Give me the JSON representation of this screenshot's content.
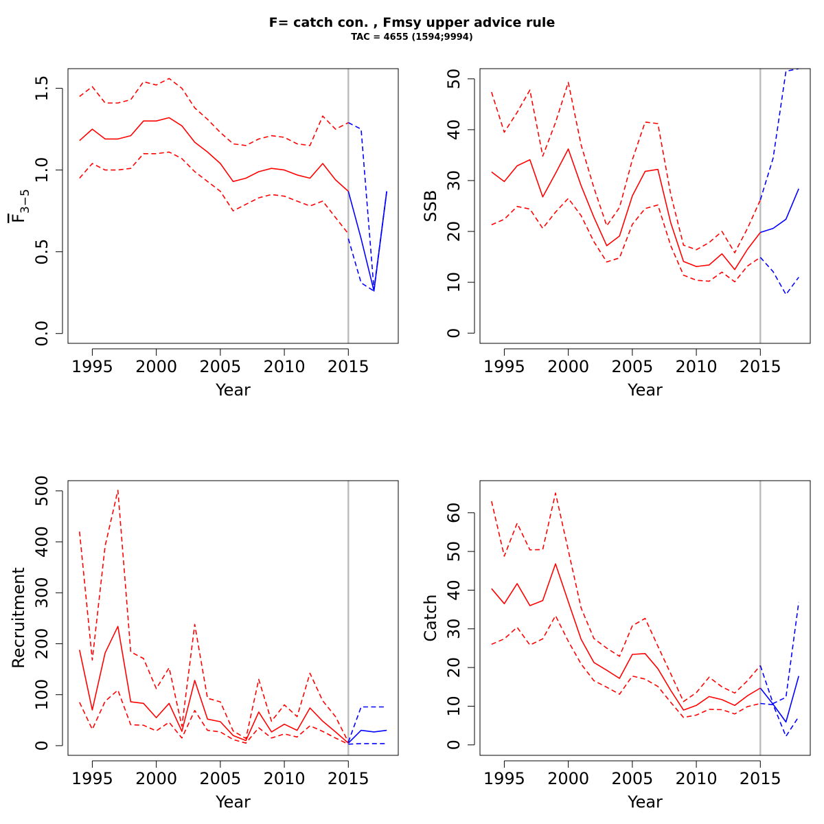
{
  "title": "F= catch con. , Fmsy upper advice rule",
  "subtitle": "TAC = 4655 (1594;9994)",
  "colors": {
    "historic": "#ff0000",
    "forecast": "#0000ff",
    "divider": "#bebebe",
    "axis": "#000000"
  },
  "chart_data": [
    {
      "type": "line",
      "xlabel": "Year",
      "ylabel": "F3-5",
      "ylabel_main": "F",
      "ylabel_sub": "3−5",
      "xlim": [
        1993.1,
        2018.9
      ],
      "ylim": [
        -0.06,
        1.62
      ],
      "xticks": [
        1995,
        2000,
        2005,
        2010,
        2015
      ],
      "yticks": [
        0,
        0.5,
        1,
        1.5
      ],
      "ytick_labels": [
        "0.0",
        "0.5",
        "1.0",
        "1.5"
      ],
      "divider_x": 2015,
      "series": [
        {
          "role": "historic-median",
          "style": "solid",
          "color": "#ff0000",
          "x": [
            1994,
            1995,
            1996,
            1997,
            1998,
            1999,
            2000,
            2001,
            2002,
            2003,
            2004,
            2005,
            2006,
            2007,
            2008,
            2009,
            2010,
            2011,
            2012,
            2013,
            2014,
            2015
          ],
          "values": [
            1.18,
            1.25,
            1.19,
            1.19,
            1.21,
            1.3,
            1.3,
            1.32,
            1.27,
            1.17,
            1.11,
            1.04,
            0.93,
            0.95,
            0.99,
            1.01,
            1.0,
            0.97,
            0.95,
            1.04,
            0.94,
            0.87
          ]
        },
        {
          "role": "historic-upper",
          "style": "dashed",
          "color": "#ff0000",
          "x": [
            1994,
            1995,
            1996,
            1997,
            1998,
            1999,
            2000,
            2001,
            2002,
            2003,
            2004,
            2005,
            2006,
            2007,
            2008,
            2009,
            2010,
            2011,
            2012,
            2013,
            2014,
            2015
          ],
          "values": [
            1.45,
            1.51,
            1.41,
            1.41,
            1.43,
            1.54,
            1.52,
            1.56,
            1.5,
            1.38,
            1.31,
            1.23,
            1.16,
            1.15,
            1.19,
            1.21,
            1.2,
            1.16,
            1.15,
            1.33,
            1.25,
            1.29
          ]
        },
        {
          "role": "historic-lower",
          "style": "dashed",
          "color": "#ff0000",
          "x": [
            1994,
            1995,
            1996,
            1997,
            1998,
            1999,
            2000,
            2001,
            2002,
            2003,
            2004,
            2005,
            2006,
            2007,
            2008,
            2009,
            2010,
            2011,
            2012,
            2013,
            2014,
            2015
          ],
          "values": [
            0.95,
            1.04,
            1.0,
            1.0,
            1.01,
            1.1,
            1.1,
            1.11,
            1.07,
            0.99,
            0.93,
            0.87,
            0.75,
            0.79,
            0.83,
            0.85,
            0.84,
            0.81,
            0.78,
            0.81,
            0.71,
            0.61
          ]
        },
        {
          "role": "forecast-median",
          "style": "solid",
          "color": "#0000ff",
          "x": [
            2015,
            2016,
            2017,
            2018
          ],
          "values": [
            0.87,
            0.58,
            0.26,
            0.87
          ]
        },
        {
          "role": "forecast-upper",
          "style": "dashed",
          "color": "#0000ff",
          "x": [
            2015,
            2016,
            2017,
            2018
          ],
          "values": [
            1.29,
            1.25,
            0.27,
            0.87
          ]
        },
        {
          "role": "forecast-lower",
          "style": "dashed",
          "color": "#0000ff",
          "x": [
            2015,
            2016,
            2017,
            2018
          ],
          "values": [
            0.58,
            0.31,
            0.26,
            0.87
          ]
        }
      ]
    },
    {
      "type": "line",
      "xlabel": "Year",
      "ylabel": "SSB",
      "xlim": [
        1993.1,
        2018.9
      ],
      "ylim": [
        -2.0,
        52.0
      ],
      "xticks": [
        1995,
        2000,
        2005,
        2010,
        2015
      ],
      "yticks": [
        0,
        10,
        20,
        30,
        40,
        50
      ],
      "ytick_labels": [
        "0",
        "10",
        "20",
        "30",
        "40",
        "50"
      ],
      "divider_x": 2015,
      "series": [
        {
          "role": "historic-median",
          "style": "solid",
          "color": "#ff0000",
          "x": [
            1994,
            1995,
            1996,
            1997,
            1998,
            1999,
            2000,
            2001,
            2002,
            2003,
            2004,
            2005,
            2006,
            2007,
            2008,
            2009,
            2010,
            2011,
            2012,
            2013,
            2014,
            2015
          ],
          "values": [
            31.7,
            29.8,
            32.9,
            34.1,
            26.8,
            31.4,
            36.2,
            29.0,
            22.8,
            17.2,
            19.1,
            27.0,
            31.8,
            32.2,
            21.7,
            14.1,
            13.1,
            13.4,
            15.6,
            12.5,
            16.5,
            19.8
          ]
        },
        {
          "role": "historic-upper",
          "style": "dashed",
          "color": "#ff0000",
          "x": [
            1994,
            1995,
            1996,
            1997,
            1998,
            1999,
            2000,
            2001,
            2002,
            2003,
            2004,
            2005,
            2006,
            2007,
            2008,
            2009,
            2010,
            2011,
            2012,
            2013,
            2014,
            2015
          ],
          "values": [
            47.4,
            39.5,
            43.4,
            47.8,
            34.8,
            41.4,
            49.3,
            37.0,
            28.6,
            21.1,
            24.7,
            34.1,
            41.5,
            41.2,
            27.3,
            17.3,
            16.4,
            17.8,
            20.0,
            15.8,
            20.6,
            26.2
          ]
        },
        {
          "role": "historic-lower",
          "style": "dashed",
          "color": "#ff0000",
          "x": [
            1994,
            1995,
            1996,
            1997,
            1998,
            1999,
            2000,
            2001,
            2002,
            2003,
            2004,
            2005,
            2006,
            2007,
            2008,
            2009,
            2010,
            2011,
            2012,
            2013,
            2014,
            2015
          ],
          "values": [
            21.3,
            22.4,
            24.9,
            24.4,
            20.6,
            23.8,
            26.5,
            23.1,
            18.0,
            14.0,
            14.8,
            21.4,
            24.5,
            25.2,
            17.2,
            11.4,
            10.4,
            10.2,
            12.0,
            10.1,
            13.2,
            14.9
          ]
        },
        {
          "role": "forecast-median",
          "style": "solid",
          "color": "#0000ff",
          "x": [
            2015,
            2016,
            2017,
            2018
          ],
          "values": [
            19.8,
            20.6,
            22.4,
            28.4
          ]
        },
        {
          "role": "forecast-upper",
          "style": "dashed",
          "color": "#0000ff",
          "x": [
            2015,
            2016,
            2017,
            2018
          ],
          "values": [
            26.2,
            34.4,
            51.5,
            52.0
          ]
        },
        {
          "role": "forecast-lower",
          "style": "dashed",
          "color": "#0000ff",
          "x": [
            2015,
            2016,
            2017,
            2018
          ],
          "values": [
            14.9,
            12.1,
            7.6,
            11.0
          ]
        }
      ]
    },
    {
      "type": "line",
      "xlabel": "Year",
      "ylabel": "Recruitment",
      "xlim": [
        1993.1,
        2018.9
      ],
      "ylim": [
        -19.0,
        520.0
      ],
      "xticks": [
        1995,
        2000,
        2005,
        2010,
        2015
      ],
      "yticks": [
        0,
        100,
        200,
        300,
        400,
        500
      ],
      "ytick_labels": [
        "0",
        "100",
        "200",
        "300",
        "400",
        "500"
      ],
      "divider_x": 2015,
      "series": [
        {
          "role": "historic-median",
          "style": "solid",
          "color": "#ff0000",
          "x": [
            1994,
            1995,
            1996,
            1997,
            1998,
            1999,
            2000,
            2001,
            2002,
            2003,
            2004,
            2005,
            2006,
            2007,
            2008,
            2009,
            2010,
            2011,
            2012,
            2013,
            2014,
            2015
          ],
          "values": [
            188,
            70,
            182,
            234,
            86,
            83,
            55,
            83,
            28,
            128,
            52,
            47,
            20,
            10,
            66,
            27,
            42,
            30,
            74,
            48,
            27,
            5
          ]
        },
        {
          "role": "historic-upper",
          "style": "dashed",
          "color": "#ff0000",
          "x": [
            1994,
            1995,
            1996,
            1997,
            1998,
            1999,
            2000,
            2001,
            2002,
            2003,
            2004,
            2005,
            2006,
            2007,
            2008,
            2009,
            2010,
            2011,
            2012,
            2013,
            2014,
            2015
          ],
          "values": [
            420,
            168,
            392,
            501,
            184,
            171,
            112,
            153,
            38,
            238,
            93,
            86,
            29,
            14,
            130,
            48,
            80,
            57,
            142,
            88,
            57,
            7
          ]
        },
        {
          "role": "historic-lower",
          "style": "dashed",
          "color": "#ff0000",
          "x": [
            1994,
            1995,
            1996,
            1997,
            1998,
            1999,
            2000,
            2001,
            2002,
            2003,
            2004,
            2005,
            2006,
            2007,
            2008,
            2009,
            2010,
            2011,
            2012,
            2013,
            2014,
            2015
          ],
          "values": [
            85,
            32,
            87,
            109,
            41,
            40,
            29,
            46,
            15,
            69,
            30,
            27,
            12,
            5,
            35,
            15,
            23,
            17,
            39,
            28,
            15,
            3
          ]
        },
        {
          "role": "forecast-median",
          "style": "solid",
          "color": "#0000ff",
          "x": [
            2015,
            2016,
            2017,
            2018
          ],
          "values": [
            5,
            30,
            27,
            30
          ]
        },
        {
          "role": "forecast-upper",
          "style": "dashed",
          "color": "#0000ff",
          "x": [
            2015,
            2016,
            2017,
            2018
          ],
          "values": [
            7,
            76,
            76,
            76
          ]
        },
        {
          "role": "forecast-lower",
          "style": "dashed",
          "color": "#0000ff",
          "x": [
            2015,
            2016,
            2017,
            2018
          ],
          "values": [
            3,
            4,
            4,
            4
          ]
        }
      ]
    },
    {
      "type": "line",
      "xlabel": "Year",
      "ylabel": "Catch",
      "xlim": [
        1993.1,
        2018.9
      ],
      "ylim": [
        -2.7,
        68.3
      ],
      "xticks": [
        1995,
        2000,
        2005,
        2010,
        2015
      ],
      "yticks": [
        0,
        10,
        20,
        30,
        40,
        50,
        60
      ],
      "ytick_labels": [
        "0",
        "10",
        "20",
        "30",
        "40",
        "50",
        "60"
      ],
      "divider_x": 2015,
      "series": [
        {
          "role": "historic-median",
          "style": "solid",
          "color": "#ff0000",
          "x": [
            1994,
            1995,
            1996,
            1997,
            1998,
            1999,
            2000,
            2001,
            2002,
            2003,
            2004,
            2005,
            2006,
            2007,
            2008,
            2009,
            2010,
            2011,
            2012,
            2013,
            2014,
            2015
          ],
          "values": [
            40.4,
            36.5,
            41.7,
            36.0,
            37.3,
            46.8,
            37.0,
            27.3,
            21.3,
            19.3,
            17.2,
            23.4,
            23.6,
            19.7,
            14.1,
            9.0,
            10.2,
            12.5,
            11.7,
            10.2,
            12.7,
            14.7
          ]
        },
        {
          "role": "historic-upper",
          "style": "dashed",
          "color": "#ff0000",
          "x": [
            1994,
            1995,
            1996,
            1997,
            1998,
            1999,
            2000,
            2001,
            2002,
            2003,
            2004,
            2005,
            2006,
            2007,
            2008,
            2009,
            2010,
            2011,
            2012,
            2013,
            2014,
            2015
          ],
          "values": [
            63.0,
            48.8,
            57.3,
            50.4,
            50.5,
            65.1,
            50.3,
            35.4,
            27.5,
            25.0,
            22.9,
            30.8,
            32.7,
            25.5,
            18.4,
            11.2,
            13.5,
            17.5,
            15.0,
            13.4,
            16.6,
            20.5
          ]
        },
        {
          "role": "historic-lower",
          "style": "dashed",
          "color": "#ff0000",
          "x": [
            1994,
            1995,
            1996,
            1997,
            1998,
            1999,
            2000,
            2001,
            2002,
            2003,
            2004,
            2005,
            2006,
            2007,
            2008,
            2009,
            2010,
            2011,
            2012,
            2013,
            2014,
            2015
          ],
          "values": [
            26.0,
            27.4,
            30.4,
            25.8,
            27.4,
            33.4,
            26.8,
            20.9,
            16.6,
            14.9,
            13.1,
            17.8,
            17.0,
            15.1,
            11.0,
            7.1,
            7.7,
            9.2,
            9.1,
            8.0,
            9.9,
            10.7
          ]
        },
        {
          "role": "forecast-median",
          "style": "solid",
          "color": "#0000ff",
          "x": [
            2015,
            2016,
            2017,
            2018
          ],
          "values": [
            14.7,
            10.5,
            5.9,
            17.8
          ]
        },
        {
          "role": "forecast-upper",
          "style": "dashed",
          "color": "#0000ff",
          "x": [
            2015,
            2016,
            2017,
            2018
          ],
          "values": [
            20.5,
            10.7,
            12.3,
            36.9
          ]
        },
        {
          "role": "forecast-lower",
          "style": "dashed",
          "color": "#0000ff",
          "x": [
            2015,
            2016,
            2017,
            2018
          ],
          "values": [
            10.7,
            10.4,
            2.2,
            7.3
          ]
        }
      ]
    }
  ]
}
